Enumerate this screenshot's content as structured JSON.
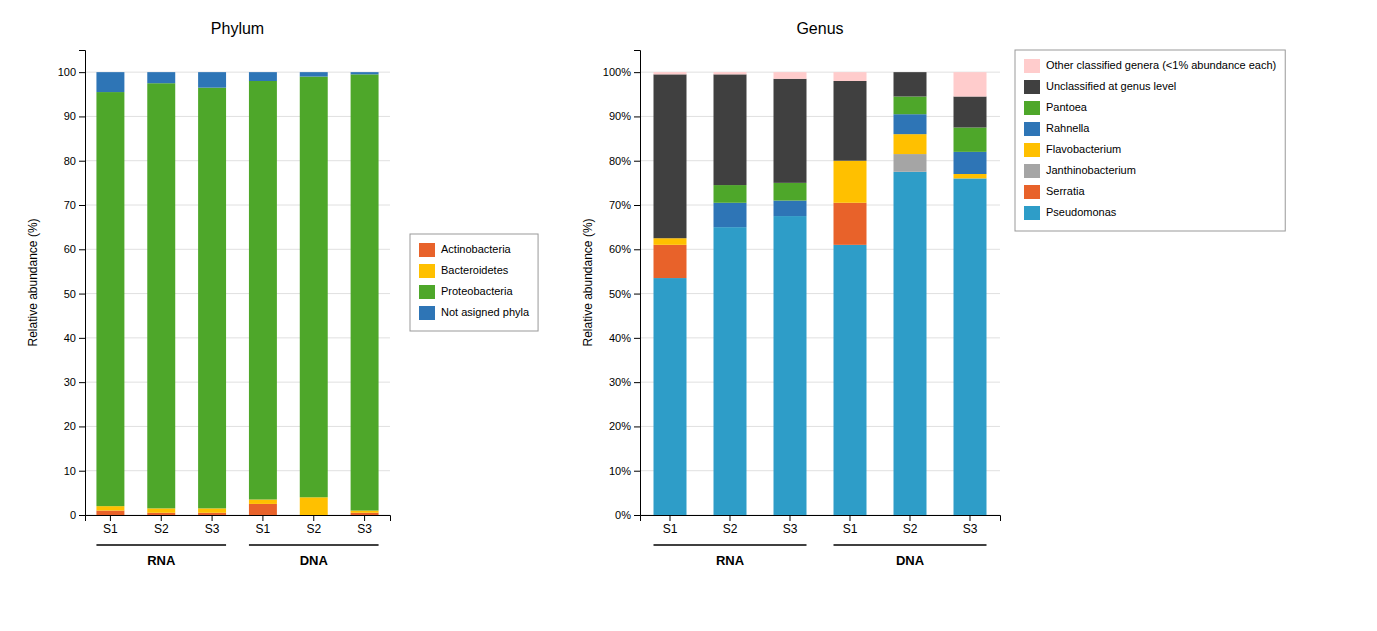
{
  "chart_data": [
    {
      "type": "bar",
      "stacked": true,
      "grid": true,
      "legend": "right",
      "title": "Phylum",
      "y_label": "Relative abundance (%)",
      "categories": [
        "S1",
        "S2",
        "S3",
        "S1",
        "S2",
        "S3"
      ],
      "annotations": [
        "RNA",
        "DNA"
      ],
      "ylim": [
        0,
        105
      ],
      "yticks": [
        0,
        10,
        20,
        30,
        40,
        50,
        60,
        70,
        80,
        90,
        100
      ],
      "series": [
        {
          "name": "Actinobacteria",
          "color": "#E8622A",
          "values": [
            1.0,
            0.5,
            0.5,
            2.5,
            0.0,
            0.5
          ]
        },
        {
          "name": "Bacteroidetes",
          "color": "#FFC000",
          "values": [
            1.0,
            1.0,
            1.0,
            1.0,
            4.0,
            0.5
          ]
        },
        {
          "name": "Proteobacteria",
          "color": "#4EA72A",
          "values": [
            93.5,
            96.0,
            95.0,
            94.5,
            95.0,
            98.5
          ]
        },
        {
          "name": "Not asigned phyla",
          "color": "#2E75B6",
          "values": [
            4.5,
            2.5,
            3.5,
            2.0,
            1.0,
            0.5
          ]
        }
      ]
    },
    {
      "type": "bar",
      "stacked": true,
      "grid": true,
      "legend": "right",
      "title": "Genus",
      "y_label": "Relative abundance (%)",
      "categories": [
        "S1",
        "S2",
        "S3",
        "S1",
        "S2",
        "S3"
      ],
      "annotations": [
        "RNA",
        "DNA"
      ],
      "ylim": [
        0,
        105
      ],
      "yticks": [
        {
          "value": 0,
          "label": "0%"
        },
        {
          "value": 10,
          "label": "10%"
        },
        {
          "value": 20,
          "label": "20%"
        },
        {
          "value": 30,
          "label": "30%"
        },
        {
          "value": 40,
          "label": "40%"
        },
        {
          "value": 50,
          "label": "50%"
        },
        {
          "value": 60,
          "label": "60%"
        },
        {
          "value": 70,
          "label": "70%"
        },
        {
          "value": 80,
          "label": "80%"
        },
        {
          "value": 90,
          "label": "90%"
        },
        {
          "value": 100,
          "label": "100%"
        }
      ],
      "series": [
        {
          "name": "Pseudomonas",
          "color": "#2E9DC8",
          "values": [
            53.5,
            65.0,
            67.5,
            61.0,
            77.5,
            76.0
          ]
        },
        {
          "name": "Serratia",
          "color": "#E8622A",
          "values": [
            7.5,
            0.0,
            0.0,
            9.5,
            0.0,
            0.0
          ]
        },
        {
          "name": "Janthinobacterium",
          "color": "#A5A5A5",
          "values": [
            0.0,
            0.0,
            0.0,
            0.0,
            4.0,
            0.0
          ]
        },
        {
          "name": "Flavobacterium",
          "color": "#FFC000",
          "values": [
            1.5,
            0.0,
            0.0,
            9.5,
            4.5,
            1.0
          ]
        },
        {
          "name": "Rahnella",
          "color": "#2E75B6",
          "values": [
            0.0,
            5.5,
            3.5,
            0.0,
            4.5,
            5.0
          ]
        },
        {
          "name": "Pantoea",
          "color": "#4EA72A",
          "values": [
            0.0,
            4.0,
            4.0,
            0.0,
            4.0,
            5.5
          ]
        },
        {
          "name": "Unclassified at genus level",
          "color": "#404040",
          "values": [
            37.0,
            25.0,
            23.5,
            18.0,
            5.5,
            7.0
          ]
        },
        {
          "name": "Other classified genera (<1% abundance each)",
          "color": "#FFCCCC",
          "values": [
            0.5,
            0.5,
            1.5,
            2.0,
            0.0,
            5.5
          ]
        }
      ]
    }
  ]
}
